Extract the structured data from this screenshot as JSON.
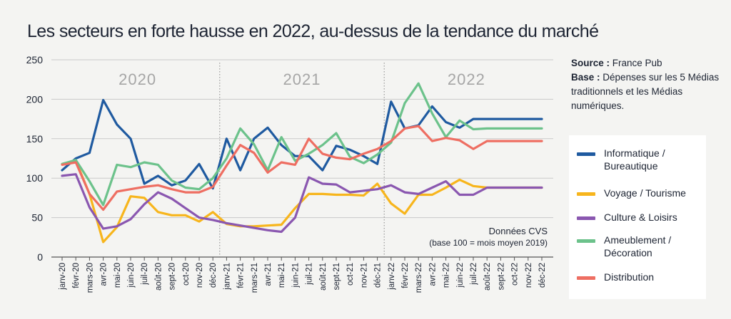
{
  "title": "Les secteurs en forte hausse en 2022, au-dessus de la tendance du marché",
  "source": {
    "source_label": "Source :",
    "source_value": "France Pub",
    "base_label": "Base :",
    "base_value": "Dépenses sur les 5 Médias traditionnels et les Médias numériques."
  },
  "note": [
    "Données CVS",
    "(base 100 = mois moyen 2019)"
  ],
  "legend_items": [
    {
      "label": "Informatique / Bureautique",
      "color": "#1f5aa0"
    },
    {
      "label": "Voyage / Tourisme",
      "color": "#f7b51c"
    },
    {
      "label": "Culture & Loisirs",
      "color": "#8a57b0"
    },
    {
      "label": "Ameublement / Décoration",
      "color": "#6cc28b"
    },
    {
      "label": "Distribution",
      "color": "#ee6e62"
    }
  ],
  "chart_data": {
    "type": "line",
    "year_labels": [
      "2020",
      "2021",
      "2022"
    ],
    "y_ticks": [
      0,
      50,
      100,
      150,
      200,
      250
    ],
    "ylim": [
      0,
      250
    ],
    "grid": true,
    "categories": [
      "janv-20",
      "févr-20",
      "mars-20",
      "avr-20",
      "mai-20",
      "juin-20",
      "juil-20",
      "août-20",
      "sept-20",
      "oct-20",
      "nov-20",
      "déc-20",
      "janv-21",
      "févr-21",
      "mars-21",
      "avr-21",
      "mai-21",
      "juin-21",
      "juil-21",
      "août-21",
      "sept-21",
      "oct-21",
      "nov-21",
      "déc-21",
      "janv-22",
      "févr-22",
      "mars-22",
      "avr-22",
      "mai-22",
      "juin-22",
      "juil-22",
      "août-22",
      "sept-22",
      "oct-22",
      "nov-22",
      "déc-22"
    ],
    "series": [
      {
        "name": "Informatique / Bureautique",
        "color": "#1f5aa0",
        "values": [
          110,
          125,
          132,
          199,
          168,
          150,
          93,
          103,
          91,
          97,
          118,
          87,
          150,
          110,
          150,
          164,
          142,
          128,
          128,
          110,
          141,
          136,
          128,
          118,
          197,
          163,
          167,
          191,
          171,
          164,
          175,
          175,
          175,
          175,
          175,
          175
        ]
      },
      {
        "name": "Voyage / Tourisme",
        "color": "#f7b51c",
        "values": [
          118,
          122,
          80,
          19,
          38,
          77,
          75,
          57,
          53,
          53,
          45,
          57,
          42,
          39,
          39,
          40,
          41,
          62,
          80,
          80,
          79,
          79,
          78,
          93,
          68,
          55,
          79,
          79,
          88,
          98,
          90,
          88,
          88,
          88,
          88,
          88
        ]
      },
      {
        "name": "Culture & Loisirs",
        "color": "#8a57b0",
        "values": [
          103,
          105,
          63,
          36,
          39,
          48,
          67,
          82,
          74,
          62,
          50,
          47,
          43,
          40,
          37,
          34,
          32,
          50,
          101,
          93,
          92,
          82,
          84,
          86,
          91,
          82,
          80,
          88,
          96,
          79,
          79,
          88,
          88,
          88,
          88,
          88
        ]
      },
      {
        "name": "Ameublement / Décoration",
        "color": "#6cc28b",
        "values": [
          118,
          123,
          96,
          66,
          117,
          114,
          120,
          117,
          97,
          88,
          86,
          100,
          125,
          163,
          143,
          110,
          152,
          122,
          131,
          142,
          157,
          127,
          119,
          130,
          145,
          195,
          220,
          182,
          152,
          173,
          162,
          163,
          163,
          163,
          163,
          163
        ]
      },
      {
        "name": "Distribution",
        "color": "#ee6e62",
        "values": [
          117,
          120,
          80,
          60,
          83,
          86,
          89,
          91,
          86,
          82,
          82,
          89,
          116,
          142,
          132,
          107,
          120,
          117,
          150,
          131,
          126,
          124,
          131,
          137,
          147,
          163,
          166,
          147,
          151,
          148,
          137,
          147,
          147,
          147,
          147,
          147
        ]
      }
    ]
  }
}
